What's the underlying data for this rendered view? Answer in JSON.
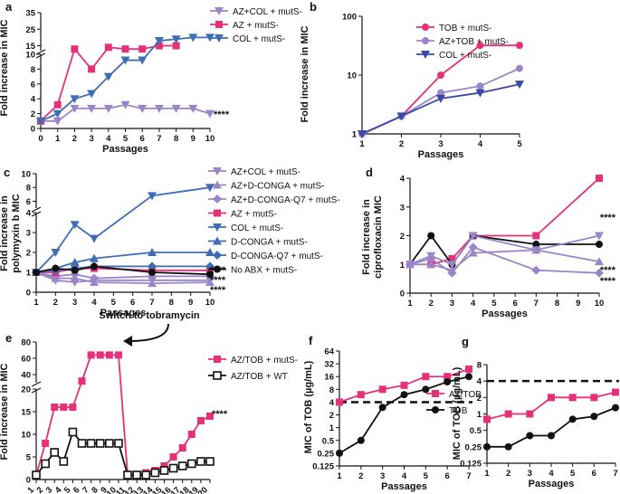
{
  "chart_data": [
    {
      "panel": "a",
      "type": "line",
      "xlabel": "Passages",
      "ylabel": "Fold increase in MIC",
      "x_ticks": [
        "0",
        "1",
        "2",
        "3",
        "4",
        "5",
        "6",
        "7",
        "8",
        "9",
        "10"
      ],
      "y_ticks": [
        "0",
        "2",
        "4",
        "6",
        "8",
        "10",
        "15",
        "25",
        "35"
      ],
      "significance": "****",
      "series": [
        {
          "name": "AZ+COL + mutS-",
          "color": "#9b85c9",
          "marker": "tri-down",
          "x": [
            0,
            1,
            2,
            3,
            4,
            5,
            6,
            7,
            8,
            9,
            10
          ],
          "y": [
            1,
            1,
            2.7,
            2.7,
            2.7,
            3.2,
            2.7,
            2.7,
            2.7,
            2.7,
            2
          ]
        },
        {
          "name": "AZ + mutS-",
          "color": "#e4317a",
          "marker": "square",
          "x": [
            0,
            1,
            2,
            3,
            4,
            5,
            6,
            7,
            8,
            9,
            10
          ],
          "y": [
            1,
            3.2,
            13,
            8,
            14,
            13,
            13,
            15,
            15,
            null,
            null
          ]
        },
        {
          "name": "COL + mutS-",
          "color": "#3f6db5",
          "marker": "tri-down",
          "x": [
            0,
            1,
            2,
            3,
            4,
            5,
            6,
            7,
            8,
            9,
            10
          ],
          "y": [
            1,
            2,
            4,
            4.7,
            7,
            9.2,
            9.2,
            18,
            19,
            20,
            20
          ]
        }
      ]
    },
    {
      "panel": "b",
      "type": "line",
      "xlabel": "Passages",
      "ylabel": "Fold increase in MIC",
      "x_ticks": [
        "1",
        "2",
        "3",
        "4",
        "5"
      ],
      "y_ticks": [
        "1",
        "10",
        "100"
      ],
      "series": [
        {
          "name": "TOB + mutS-",
          "color": "#e4317a",
          "marker": "circle",
          "x": [
            1,
            2,
            3,
            4,
            5
          ],
          "y": [
            1,
            2,
            10,
            32,
            32
          ]
        },
        {
          "name": "AZ+TOB + mutS-",
          "color": "#9b85c9",
          "marker": "circle",
          "x": [
            1,
            2,
            3,
            4,
            5
          ],
          "y": [
            1,
            2,
            5,
            6.5,
            13
          ]
        },
        {
          "name": "COL + mutS-",
          "color": "#3a48a8",
          "marker": "tri-down",
          "x": [
            1,
            2,
            3,
            4,
            5
          ],
          "y": [
            1,
            2,
            4,
            5,
            7
          ]
        }
      ]
    },
    {
      "panel": "c",
      "type": "line",
      "xlabel": "Passages",
      "ylabel": "Fold increase in polymyxin b MIC",
      "x_ticks": [
        "1",
        "2",
        "3",
        "4",
        "5",
        "6",
        "7",
        "8",
        "9",
        "10"
      ],
      "y_ticks": [
        "0",
        "1",
        "2",
        "3",
        "4",
        "6",
        "8",
        "10"
      ],
      "significance": [
        "****",
        "****",
        "****"
      ],
      "series": [
        {
          "name": "AZ+COL + mutS-",
          "color": "#9b85c9",
          "marker": "tri-down",
          "x": [
            1,
            2,
            3,
            4,
            7,
            10
          ],
          "y": [
            1,
            0.6,
            0.5,
            0.6,
            0.6,
            0.6
          ]
        },
        {
          "name": "AZ+D-CONGA + mutS-",
          "color": "#9b85c9",
          "marker": "tri-up",
          "x": [
            1,
            2,
            3,
            4,
            7,
            10
          ],
          "y": [
            1,
            0.7,
            0.7,
            0.5,
            0.45,
            0.5
          ]
        },
        {
          "name": "AZ+D-CONGA-Q7 + mutS-",
          "color": "#9b85c9",
          "marker": "diamond",
          "x": [
            1,
            2,
            3,
            4,
            7,
            10
          ],
          "y": [
            1,
            0.8,
            0.9,
            0.7,
            0.8,
            0.8
          ]
        },
        {
          "name": "AZ + mutS-",
          "color": "#e4317a",
          "marker": "square",
          "x": [
            1,
            2,
            3,
            4,
            7,
            10
          ],
          "y": [
            1,
            1,
            1.2,
            1.2,
            1.1,
            1.1
          ]
        },
        {
          "name": "COL + mutS-",
          "color": "#3f6db5",
          "marker": "tri-down",
          "x": [
            1,
            2,
            3,
            4,
            7,
            10
          ],
          "y": [
            1,
            2,
            3.4,
            2.7,
            6.8,
            8
          ]
        },
        {
          "name": "D-CONGA + mutS-",
          "color": "#3f6db5",
          "marker": "tri-up",
          "x": [
            1,
            2,
            3,
            4,
            7,
            10
          ],
          "y": [
            1,
            1.2,
            1.5,
            1.7,
            2,
            2
          ]
        },
        {
          "name": "D-CONGA-Q7 + mutS-",
          "color": "#3f6db5",
          "marker": "diamond",
          "x": [
            1,
            2,
            3,
            4,
            7,
            10
          ],
          "y": [
            1,
            1.1,
            1.2,
            1.3,
            1.3,
            1.3
          ]
        },
        {
          "name": "No ABX + mutS-",
          "color": "#111111",
          "marker": "circle",
          "x": [
            1,
            2,
            3,
            4,
            7,
            10
          ],
          "y": [
            1,
            1.2,
            1.1,
            1.3,
            1,
            0.9
          ]
        }
      ]
    },
    {
      "panel": "d",
      "type": "line",
      "xlabel": "Passages",
      "ylabel": "Fold increase in ciprofloxacin MIC",
      "x_ticks": [
        "1",
        "2",
        "3",
        "4",
        "5",
        "6",
        "7",
        "8",
        "9",
        "10"
      ],
      "y_ticks": [
        "0",
        "1",
        "2",
        "3",
        "4"
      ],
      "significance": [
        "****",
        "****",
        "****"
      ],
      "series": [
        {
          "name": "AZ + mutS-",
          "color": "#e4317a",
          "marker": "square",
          "x": [
            1,
            2,
            3,
            4,
            7,
            10
          ],
          "y": [
            1,
            1,
            1.2,
            2,
            2,
            4
          ]
        },
        {
          "name": "No ABX + mutS-",
          "color": "#111111",
          "marker": "circle",
          "x": [
            1,
            2,
            3,
            4,
            7,
            10
          ],
          "y": [
            1,
            2,
            1,
            2,
            1.7,
            1.7
          ]
        },
        {
          "name": "AZ+COL + mutS-",
          "color": "#9b85c9",
          "marker": "tri-down",
          "x": [
            1,
            2,
            3,
            4,
            7,
            10
          ],
          "y": [
            1,
            1.3,
            1,
            2,
            1.5,
            2
          ]
        },
        {
          "name": "AZ+D-CONGA + mutS-",
          "color": "#9b85c9",
          "marker": "tri-up",
          "x": [
            1,
            2,
            3,
            4,
            7,
            10
          ],
          "y": [
            1,
            1,
            0.8,
            1.4,
            1.5,
            1.1
          ]
        },
        {
          "name": "AZ+D-CONGA-Q7 + mutS-",
          "color": "#9b85c9",
          "marker": "diamond",
          "x": [
            1,
            2,
            3,
            4,
            7,
            10
          ],
          "y": [
            1,
            1.2,
            0.7,
            1.6,
            0.8,
            0.7
          ]
        }
      ]
    },
    {
      "panel": "e",
      "type": "line",
      "xlabel": "Passages",
      "ylabel": "Fold increase in MIC",
      "x_ticks": [
        "1",
        "2",
        "3",
        "4",
        "5",
        "6",
        "7",
        "8",
        "9",
        "10",
        "11",
        "12",
        "13",
        "14",
        "15",
        "16",
        "17",
        "18",
        "19",
        "20"
      ],
      "y_ticks": [
        "0",
        "5",
        "10",
        "15",
        "20",
        "40",
        "60",
        "80"
      ],
      "annotation": "Switch to tobramycin",
      "significance": "****",
      "series": [
        {
          "name": "AZ/TOB + mutS-",
          "color": "#e4317a",
          "marker": "square",
          "x": [
            1,
            2,
            3,
            4,
            5,
            6,
            7,
            8,
            9,
            10,
            11,
            12,
            13,
            14,
            15,
            16,
            17,
            18,
            19,
            20
          ],
          "y": [
            1,
            8,
            16,
            16,
            16,
            32,
            64,
            64,
            64,
            64,
            1,
            1,
            1.5,
            2,
            3,
            5,
            7,
            10,
            13,
            14
          ]
        },
        {
          "name": "AZ/TOB + WT",
          "color": "#111111",
          "marker": "open-square",
          "x": [
            1,
            2,
            3,
            4,
            5,
            6,
            7,
            8,
            9,
            10,
            11,
            12,
            13,
            14,
            15,
            16,
            17,
            18,
            19,
            20
          ],
          "y": [
            1,
            3.5,
            6,
            4,
            10.5,
            8,
            8,
            8,
            8,
            8,
            1,
            1,
            1,
            1.5,
            2,
            2.5,
            3,
            3.5,
            4,
            4
          ]
        }
      ]
    },
    {
      "panel": "f",
      "type": "line",
      "xlabel": "Passages",
      "ylabel": "MIC of TOB (µg/mL)",
      "x_ticks": [
        "1",
        "2",
        "3",
        "4",
        "5",
        "6",
        "7"
      ],
      "y_ticks": [
        "0.125",
        "0.25",
        "0.5",
        "1",
        "2",
        "4",
        "8",
        "16",
        "32",
        "64"
      ],
      "breakpoint": 4,
      "series": [
        {
          "name": "AZ/TOB",
          "color": "#e4317a",
          "marker": "square",
          "x": [
            1,
            2,
            3,
            4,
            5,
            6,
            7
          ],
          "y": [
            4,
            6,
            8,
            10,
            16,
            16,
            24
          ]
        },
        {
          "name": "TOB",
          "color": "#111111",
          "marker": "circle",
          "x": [
            1,
            2,
            3,
            4,
            5,
            6,
            7
          ],
          "y": [
            0.25,
            0.5,
            3,
            6,
            8,
            12,
            16
          ]
        }
      ]
    },
    {
      "panel": "g",
      "type": "line",
      "xlabel": "Passages",
      "ylabel": "MIC of TOB (µg/mL)",
      "x_ticks": [
        "1",
        "2",
        "3",
        "4",
        "5",
        "6",
        "7"
      ],
      "y_ticks": [
        "0.125",
        "0.25",
        "0.5",
        "1",
        "2",
        "4",
        "8"
      ],
      "breakpoint": 4,
      "series": [
        {
          "name": "AZ/TOB",
          "color": "#e4317a",
          "marker": "square",
          "x": [
            1,
            2,
            3,
            4,
            5,
            6,
            7
          ],
          "y": [
            0.8,
            1,
            1,
            2,
            2,
            2,
            2.5
          ]
        },
        {
          "name": "TOB",
          "color": "#111111",
          "marker": "circle",
          "x": [
            1,
            2,
            3,
            4,
            5,
            6,
            7
          ],
          "y": [
            0.25,
            0.25,
            0.4,
            0.4,
            0.8,
            0.9,
            1.3
          ]
        }
      ]
    }
  ]
}
